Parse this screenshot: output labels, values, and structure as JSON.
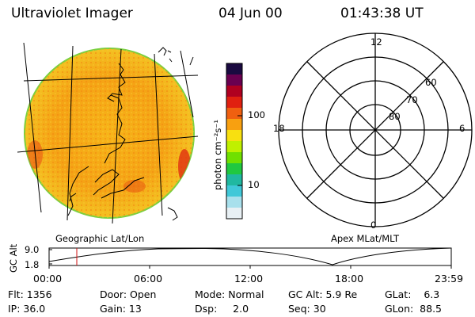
{
  "header": {
    "instrument": "Ultraviolet Imager",
    "date": "04 Jun 00",
    "time": "01:43:38 UT"
  },
  "colorbar": {
    "unit_label": "photon cm⁻²s⁻¹",
    "tick_labels": [
      "100",
      "10"
    ],
    "colors": [
      "#1a0a40",
      "#6a0050",
      "#b00020",
      "#e02010",
      "#f06010",
      "#f8a010",
      "#f8e010",
      "#c0f000",
      "#70e000",
      "#20c840",
      "#20b8a0",
      "#40c8d8",
      "#a8e0ec",
      "#e8f0f4"
    ]
  },
  "geo_panel": {
    "label": "Geographic Lat/Lon"
  },
  "polar_panel": {
    "label": "Apex MLat/MLT",
    "mlt_labels": {
      "top": "12",
      "right": "6",
      "bottom": "0",
      "left": "18"
    },
    "mlat_labels": [
      "60",
      "70",
      "80"
    ]
  },
  "altitude_plot": {
    "ylabel": "GC Alt",
    "y_ticks": [
      "9.0",
      "1.8"
    ],
    "x_ticks": [
      "00:00",
      "06:00",
      "12:00",
      "18:00",
      "23:59"
    ],
    "marker_time": "01:43"
  },
  "info": {
    "flt": "Flt: 1356",
    "ip": "IP: 36.0",
    "door": "Door: Open",
    "gain": "Gain: 13",
    "mode": "Mode: Normal",
    "dsp": "Dsp:     2.0",
    "gc_alt": "GC Alt: 5.9 Re",
    "seq": "Seq: 30",
    "glat": "GLat:    6.3",
    "glon": "GLon:  88.5"
  }
}
